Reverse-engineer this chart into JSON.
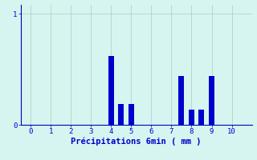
{
  "bar_positions": [
    4.0,
    4.5,
    5.0,
    7.5,
    8.0,
    8.5,
    9.0
  ],
  "bar_heights": [
    0.62,
    0.19,
    0.19,
    0.44,
    0.14,
    0.14,
    0.44
  ],
  "bar_width": 0.28,
  "bar_color": "#0000cc",
  "bg_color": "#d6f5f0",
  "grid_color": "#b0c8c8",
  "axis_color": "#0000bb",
  "xlabel": "Précipitations 6min ( mm )",
  "xlabel_color": "#0000cc",
  "xlim": [
    -0.5,
    11.0
  ],
  "ylim": [
    0,
    1.08
  ],
  "xticks": [
    0,
    1,
    2,
    3,
    4,
    5,
    6,
    7,
    8,
    9,
    10
  ],
  "yticks": [
    0,
    1
  ],
  "tick_color": "#0000cc",
  "tick_fontsize": 6.5,
  "xlabel_fontsize": 7.5
}
